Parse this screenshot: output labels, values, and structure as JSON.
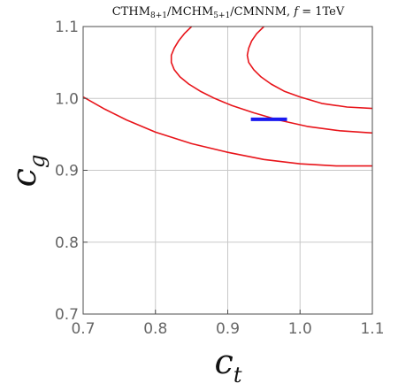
{
  "chart_data": {
    "type": "line",
    "title": {
      "text1": "CTHM",
      "sub1": "8+1",
      "text2": "/MCHM",
      "sub2": "5+1",
      "text3": "/CMNNM,  ",
      "var": "f",
      "text4": " = 1TeV"
    },
    "xlabel": {
      "base": "c",
      "sub": "t"
    },
    "ylabel": {
      "base": "c",
      "sub": "g"
    },
    "xlim": [
      0.7,
      1.1
    ],
    "ylim": [
      0.7,
      1.1
    ],
    "xticks": [
      "0.7",
      "0.8",
      "0.9",
      "1.0",
      "1.1"
    ],
    "yticks": [
      "0.7",
      "0.8",
      "0.9",
      "1.0",
      "1.1"
    ],
    "grid": true,
    "contour_color": "#e8141a",
    "marker_color": "#1a1af0",
    "contours": [
      {
        "name": "",
        "segments": [
          [
            [
              0.85,
              1.1
            ],
            [
              0.84,
              1.09
            ],
            [
              0.832,
              1.08
            ],
            [
              0.826,
              1.07
            ],
            [
              0.822,
              1.06
            ],
            [
              0.822,
              1.05
            ],
            [
              0.826,
              1.04
            ],
            [
              0.834,
              1.03
            ],
            [
              0.846,
              1.02
            ],
            [
              0.862,
              1.01
            ],
            [
              0.882,
              1.0
            ],
            [
              0.906,
              0.99
            ],
            [
              0.936,
              0.98
            ],
            [
              0.97,
              0.97
            ],
            [
              1.01,
              0.961
            ],
            [
              1.055,
              0.955
            ],
            [
              1.1,
              0.952
            ]
          ],
          [
            [
              0.7,
              1.002
            ],
            [
              0.73,
              0.985
            ],
            [
              0.76,
              0.97
            ],
            [
              0.8,
              0.953
            ],
            [
              0.85,
              0.937
            ],
            [
              0.9,
              0.925
            ],
            [
              0.95,
              0.915
            ],
            [
              1.0,
              0.909
            ],
            [
              1.05,
              0.906
            ],
            [
              1.1,
              0.906
            ]
          ]
        ]
      },
      {
        "name": "",
        "segments": [
          [
            [
              0.95,
              1.1
            ],
            [
              0.94,
              1.09
            ],
            [
              0.933,
              1.08
            ],
            [
              0.929,
              1.07
            ],
            [
              0.927,
              1.06
            ],
            [
              0.929,
              1.05
            ],
            [
              0.936,
              1.04
            ],
            [
              0.946,
              1.03
            ],
            [
              0.96,
              1.02
            ],
            [
              0.978,
              1.01
            ],
            [
              1.0,
              1.002
            ],
            [
              1.03,
              0.993
            ],
            [
              1.065,
              0.988
            ],
            [
              1.1,
              0.986
            ]
          ]
        ]
      }
    ],
    "marker": {
      "x": [
        0.932,
        0.982
      ],
      "y": 0.971
    }
  }
}
